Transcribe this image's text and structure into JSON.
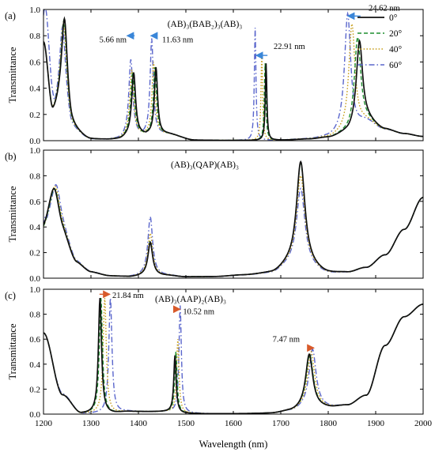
{
  "chart_data": {
    "type": "line",
    "xlabel": "Wavelength (nm)",
    "ylabel": "Transmittance",
    "xlim": [
      1200,
      2000
    ],
    "ylim": [
      0,
      1.0
    ],
    "x_ticks": [
      "1200",
      "1300",
      "1400",
      "1500",
      "1600",
      "1700",
      "1800",
      "1900",
      "2000"
    ],
    "y_ticks": [
      "0.0",
      "0.2",
      "0.4",
      "0.6",
      "0.8",
      "1.0"
    ],
    "series_styles": [
      {
        "name": "0°",
        "color": "#111111",
        "dash": "solid"
      },
      {
        "name": "20°",
        "color": "#1f8f2f",
        "dash": "dashed"
      },
      {
        "name": "40°",
        "color": "#c8a020",
        "dash": "dotted"
      },
      {
        "name": "60°",
        "color": "#5a66cc",
        "dash": "dash-dot"
      }
    ],
    "legend": {
      "position": "top-right",
      "panel": 0
    },
    "arrow_colors": {
      "blue": "#3a86d8",
      "red": "#d85a2a"
    },
    "panels": [
      {
        "tag": "(a)",
        "title": "(AB)₃(BAB₂)₃(AB)₃",
        "baseline": {
          "x": [
            1200,
            1220,
            1240,
            1260,
            1300,
            1360,
            1380,
            1420,
            1460,
            1520,
            1580,
            1640,
            1700,
            1760,
            1800,
            1840,
            1880,
            1920,
            1960,
            2000
          ],
          "y": [
            0.75,
            0.2,
            0.3,
            0.06,
            0.005,
            0.01,
            0.03,
            0.05,
            0.05,
            0.004,
            0.002,
            0.002,
            0.004,
            0.01,
            0.02,
            0.05,
            0.14,
            0.08,
            0.05,
            0.03
          ]
        },
        "peaks": {
          "0°": [
            [
              1244,
              0.93,
              7
            ],
            [
              1390,
              0.52,
              5
            ],
            [
              1437,
              0.56,
              4
            ],
            [
              1669,
              0.59,
              2
            ],
            [
              1866,
              0.76,
              8
            ]
          ],
          "20°": [
            [
              1243,
              0.92,
              7
            ],
            [
              1388,
              0.52,
              5
            ],
            [
              1435,
              0.56,
              4
            ],
            [
              1667,
              0.59,
              2
            ],
            [
              1862,
              0.79,
              8
            ]
          ],
          "40°": [
            [
              1242,
              0.9,
              7
            ],
            [
              1386,
              0.54,
              5
            ],
            [
              1432,
              0.6,
              4
            ],
            [
              1660,
              0.66,
              2
            ],
            [
              1850,
              0.89,
              8
            ]
          ],
          "60°": [
            [
              1240,
              0.87,
              7
            ],
            [
              1384,
              0.62,
              5
            ],
            [
              1428,
              0.78,
              4
            ],
            [
              1646,
              0.86,
              2
            ],
            [
              1841,
              0.97,
              8
            ]
          ]
        },
        "extra_60": [
          [
            1207,
            0.35,
            18
          ]
        ],
        "annotations": [
          {
            "text": "5.66 nm",
            "x": 1375,
            "y": 0.75,
            "arrow_from": 1392,
            "arrow_to": 1376,
            "arrow_y": 0.8,
            "color": "blue"
          },
          {
            "text": "11.63 nm",
            "x": 1450,
            "y": 0.75,
            "arrow_from": 1440,
            "arrow_to": 1426,
            "arrow_y": 0.8,
            "color": "blue"
          },
          {
            "text": "22.91 nm",
            "x": 1685,
            "y": 0.7,
            "arrow_from": 1672,
            "arrow_to": 1648,
            "arrow_y": 0.65,
            "color": "blue"
          },
          {
            "text": "24.62 nm",
            "x": 1885,
            "y": 0.99,
            "arrow_from": 1868,
            "arrow_to": 1841,
            "arrow_y": 0.95,
            "color": "blue"
          }
        ]
      },
      {
        "tag": "(b)",
        "title": "(AB)₃(QAP)(AB)₃",
        "baseline": {
          "x": [
            1200,
            1215,
            1240,
            1270,
            1300,
            1340,
            1380,
            1420,
            1460,
            1500,
            1560,
            1620,
            1680,
            1720,
            1760,
            1800,
            1840,
            1880,
            1920,
            1960,
            2000
          ],
          "y": [
            0.3,
            0.35,
            0.25,
            0.08,
            0.03,
            0.01,
            0.01,
            0.02,
            0.02,
            0.01,
            0.01,
            0.02,
            0.03,
            0.08,
            0.06,
            0.03,
            0.04,
            0.08,
            0.18,
            0.38,
            0.63
          ]
        },
        "peaks": {
          "0°": [
            [
              1222,
              0.7,
              14
            ],
            [
              1425,
              0.28,
              6
            ],
            [
              1742,
              0.91,
              11
            ]
          ],
          "20°": [
            [
              1223,
              0.7,
              14
            ],
            [
              1425,
              0.29,
              6
            ],
            [
              1742,
              0.9,
              11
            ]
          ],
          "40°": [
            [
              1224,
              0.72,
              14
            ],
            [
              1425,
              0.35,
              6
            ],
            [
              1742,
              0.8,
              11
            ]
          ],
          "60°": [
            [
              1226,
              0.73,
              14
            ],
            [
              1425,
              0.48,
              6
            ],
            [
              1742,
              0.7,
              11
            ]
          ]
        },
        "extra_60": [
          [
            1205,
            0.18,
            12
          ]
        ],
        "annotations": []
      },
      {
        "tag": "(c)",
        "title": "(AB)₃(AAP)₂(AB)₃",
        "baseline": {
          "x": [
            1200,
            1240,
            1280,
            1300,
            1340,
            1380,
            1420,
            1460,
            1500,
            1560,
            1620,
            1680,
            1720,
            1760,
            1800,
            1840,
            1880,
            1920,
            1960,
            2000
          ],
          "y": [
            0.65,
            0.15,
            0.005,
            0.005,
            0.005,
            0.02,
            0.02,
            0.02,
            0.005,
            0.003,
            0.003,
            0.005,
            0.02,
            0.05,
            0.05,
            0.07,
            0.15,
            0.55,
            0.78,
            0.88
          ]
        },
        "peaks": {
          "0°": [
            [
              1203,
              0.3,
              7
            ],
            [
              1319,
              0.93,
              4
            ],
            [
              1477,
              0.47,
              3
            ],
            [
              1760,
              0.48,
              9
            ]
          ],
          "20°": [
            [
              1204,
              0.3,
              7
            ],
            [
              1321,
              0.93,
              4
            ],
            [
              1479,
              0.5,
              3
            ],
            [
              1761,
              0.48,
              9
            ]
          ],
          "40°": [
            [
              1206,
              0.3,
              7
            ],
            [
              1329,
              0.93,
              4
            ],
            [
              1483,
              0.6,
              3
            ],
            [
              1764,
              0.5,
              9
            ]
          ],
          "60°": [
            [
              1213,
              0.3,
              9
            ],
            [
              1341,
              0.93,
              4
            ],
            [
              1488,
              0.87,
              3
            ],
            [
              1767,
              0.52,
              9
            ]
          ]
        },
        "extra_60": [],
        "annotations": [
          {
            "text": "21.84 nm",
            "x": 1345,
            "y": 0.93,
            "arrow_from": 1318,
            "arrow_to": 1340,
            "arrow_y": 0.96,
            "color": "red"
          },
          {
            "text": "10.52 nm",
            "x": 1494,
            "y": 0.8,
            "arrow_from": 1476,
            "arrow_to": 1488,
            "arrow_y": 0.84,
            "color": "red"
          },
          {
            "text": "7.47 nm",
            "x": 1740,
            "y": 0.58,
            "arrow_from": 1760,
            "arrow_to": 1770,
            "arrow_y": 0.53,
            "color": "red"
          }
        ]
      }
    ]
  }
}
